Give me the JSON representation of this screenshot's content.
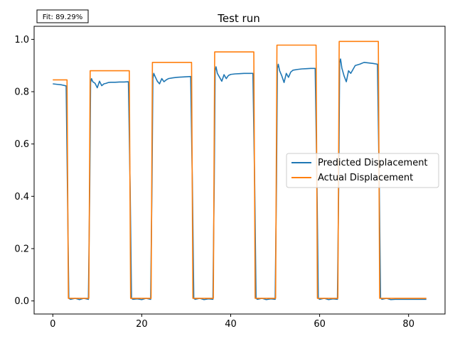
{
  "chart_data": {
    "type": "line",
    "title": "Test run",
    "annotation": "Fit: 89.29%",
    "xlabel": "",
    "ylabel": "",
    "xlim": [
      -4.2,
      88.2
    ],
    "ylim": [
      -0.05,
      1.05
    ],
    "xticks": [
      0,
      20,
      40,
      60,
      80
    ],
    "yticks": [
      0.0,
      0.2,
      0.4,
      0.6,
      0.8,
      1.0
    ],
    "xtick_labels": [
      "0",
      "20",
      "40",
      "60",
      "80"
    ],
    "ytick_labels": [
      "0.0",
      "0.2",
      "0.4",
      "0.6",
      "0.8",
      "1.0"
    ],
    "grid": false,
    "legend_position": "center-right",
    "colors": {
      "predicted": "#1f77b4",
      "actual": "#ff7f0e"
    },
    "series": [
      {
        "name": "Predicted Displacement",
        "color": "#1f77b4",
        "x": [
          0.0,
          1.0,
          2.0,
          3.0,
          3.3,
          3.6,
          4.0,
          5.0,
          6.0,
          7.0,
          8.0,
          8.3,
          8.5,
          8.7,
          9.0,
          9.5,
          10.0,
          10.5,
          11.0,
          11.5,
          12.0,
          12.5,
          13.0,
          14.0,
          15.0,
          16.0,
          17.0,
          17.4,
          17.7,
          18.0,
          19.0,
          20.0,
          21.0,
          22.0,
          22.3,
          22.5,
          22.7,
          23.0,
          23.5,
          24.0,
          24.5,
          25.0,
          25.5,
          26.0,
          27.0,
          28.0,
          29.0,
          30.0,
          31.0,
          31.4,
          31.7,
          32.0,
          33.0,
          34.0,
          35.0,
          36.0,
          36.3,
          36.5,
          36.7,
          37.0,
          37.5,
          38.0,
          38.5,
          39.0,
          39.5,
          40.0,
          41.0,
          42.0,
          43.0,
          44.0,
          45.0,
          45.4,
          45.7,
          46.0,
          47.0,
          48.0,
          49.0,
          50.0,
          50.3,
          50.5,
          50.7,
          51.0,
          51.5,
          52.0,
          52.5,
          53.0,
          53.5,
          54.0,
          55.0,
          56.0,
          57.0,
          58.0,
          59.0,
          59.4,
          59.7,
          60.0,
          61.0,
          62.0,
          63.0,
          64.0,
          64.3,
          64.5,
          64.7,
          65.0,
          65.5,
          66.0,
          66.5,
          67.0,
          68.0,
          69.0,
          70.0,
          71.0,
          72.0,
          73.0,
          73.4,
          73.7,
          74.0,
          75.0,
          76.0,
          77.0,
          80.0,
          84.0
        ],
        "y": [
          0.83,
          0.828,
          0.826,
          0.822,
          0.42,
          0.01,
          0.006,
          0.01,
          0.005,
          0.01,
          0.006,
          0.42,
          0.835,
          0.85,
          0.838,
          0.832,
          0.815,
          0.84,
          0.823,
          0.83,
          0.832,
          0.835,
          0.836,
          0.836,
          0.837,
          0.837,
          0.838,
          0.42,
          0.01,
          0.006,
          0.008,
          0.005,
          0.01,
          0.006,
          0.44,
          0.85,
          0.87,
          0.858,
          0.84,
          0.83,
          0.85,
          0.838,
          0.845,
          0.85,
          0.853,
          0.855,
          0.856,
          0.857,
          0.858,
          0.43,
          0.01,
          0.006,
          0.01,
          0.005,
          0.008,
          0.006,
          0.45,
          0.88,
          0.895,
          0.87,
          0.855,
          0.84,
          0.865,
          0.85,
          0.862,
          0.866,
          0.868,
          0.869,
          0.87,
          0.87,
          0.87,
          0.44,
          0.01,
          0.006,
          0.01,
          0.005,
          0.008,
          0.006,
          0.45,
          0.89,
          0.905,
          0.88,
          0.86,
          0.835,
          0.87,
          0.855,
          0.875,
          0.882,
          0.885,
          0.887,
          0.888,
          0.889,
          0.889,
          0.45,
          0.01,
          0.006,
          0.01,
          0.005,
          0.008,
          0.006,
          0.46,
          0.91,
          0.925,
          0.89,
          0.86,
          0.838,
          0.88,
          0.87,
          0.9,
          0.905,
          0.912,
          0.91,
          0.908,
          0.905,
          0.45,
          0.012,
          0.006,
          0.01,
          0.005,
          0.006,
          0.006,
          0.006
        ]
      },
      {
        "name": "Actual Displacement",
        "color": "#ff7f0e",
        "x": [
          0.0,
          3.2,
          3.5,
          8.1,
          8.4,
          17.2,
          17.5,
          22.1,
          22.4,
          31.2,
          31.5,
          36.1,
          36.4,
          45.2,
          45.5,
          50.1,
          50.4,
          59.2,
          59.5,
          64.1,
          64.4,
          73.2,
          73.5,
          84.0
        ],
        "y": [
          0.845,
          0.845,
          0.01,
          0.01,
          0.88,
          0.88,
          0.01,
          0.01,
          0.912,
          0.912,
          0.01,
          0.01,
          0.952,
          0.952,
          0.01,
          0.01,
          0.978,
          0.978,
          0.01,
          0.01,
          0.992,
          0.992,
          0.01,
          0.01
        ]
      }
    ]
  }
}
